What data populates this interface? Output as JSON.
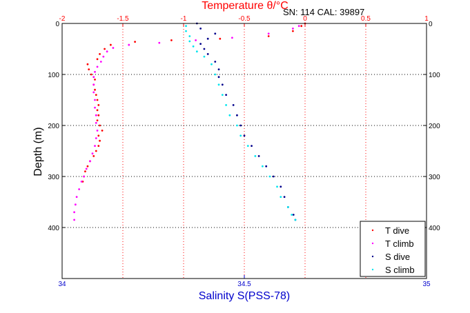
{
  "header": {
    "top_title": "Temperature θ/°C",
    "serial_text": "SN: 114  CAL: 39897"
  },
  "chart_data": {
    "type": "scatter",
    "ylabel": "Depth (m)",
    "ylim": [
      0,
      500
    ],
    "y_reversed": true,
    "y_ticks": [
      "0",
      "100",
      "200",
      "300",
      "400"
    ],
    "x_top": {
      "label": "Temperature θ/°C",
      "lim": [
        -2,
        1
      ],
      "ticks": [
        "-2",
        "-1.5",
        "-1",
        "-0.5",
        "0",
        "0.5",
        "1"
      ],
      "color": "#ff0000"
    },
    "x_bottom": {
      "label": "Salinity S(PSS-78)",
      "lim": [
        34,
        35
      ],
      "ticks": [
        "34",
        "34.5",
        "35"
      ],
      "color": "#0000cc"
    },
    "grid": true,
    "legend_position": "bottom-right",
    "series": [
      {
        "name": "T dive",
        "axis": "top",
        "color": "#ff0000",
        "points": [
          [
            0.0,
            0
          ],
          [
            -0.03,
            5
          ],
          [
            -0.1,
            15
          ],
          [
            -0.3,
            25
          ],
          [
            -0.7,
            30
          ],
          [
            -1.1,
            33
          ],
          [
            -1.4,
            36
          ],
          [
            -1.6,
            42
          ],
          [
            -1.65,
            50
          ],
          [
            -1.69,
            60
          ],
          [
            -1.71,
            70
          ],
          [
            -1.79,
            80
          ],
          [
            -1.78,
            90
          ],
          [
            -1.76,
            100
          ],
          [
            -1.73,
            110
          ],
          [
            -1.74,
            120
          ],
          [
            -1.73,
            130
          ],
          [
            -1.72,
            140
          ],
          [
            -1.71,
            150
          ],
          [
            -1.7,
            160
          ],
          [
            -1.71,
            170
          ],
          [
            -1.7,
            180
          ],
          [
            -1.71,
            190
          ],
          [
            -1.69,
            200
          ],
          [
            -1.67,
            210
          ],
          [
            -1.7,
            220
          ],
          [
            -1.69,
            230
          ],
          [
            -1.7,
            240
          ],
          [
            -1.72,
            250
          ],
          [
            -1.74,
            260
          ],
          [
            -1.77,
            270
          ],
          [
            -1.79,
            280
          ],
          [
            -1.81,
            290
          ],
          [
            -1.82,
            300
          ],
          [
            -1.83,
            310
          ]
        ]
      },
      {
        "name": "T climb",
        "axis": "top",
        "color": "#ff00ff",
        "points": [
          [
            -1.9,
            385
          ],
          [
            -1.9,
            370
          ],
          [
            -1.89,
            355
          ],
          [
            -1.88,
            340
          ],
          [
            -1.86,
            325
          ],
          [
            -1.84,
            310
          ],
          [
            -1.82,
            300
          ],
          [
            -1.8,
            285
          ],
          [
            -1.77,
            270
          ],
          [
            -1.75,
            255
          ],
          [
            -1.73,
            240
          ],
          [
            -1.72,
            225
          ],
          [
            -1.71,
            210
          ],
          [
            -1.72,
            195
          ],
          [
            -1.72,
            180
          ],
          [
            -1.73,
            165
          ],
          [
            -1.73,
            150
          ],
          [
            -1.74,
            135
          ],
          [
            -1.74,
            120
          ],
          [
            -1.74,
            105
          ],
          [
            -1.73,
            95
          ],
          [
            -1.71,
            85
          ],
          [
            -1.68,
            75
          ],
          [
            -1.66,
            65
          ],
          [
            -1.63,
            55
          ],
          [
            -1.58,
            48
          ],
          [
            -1.45,
            42
          ],
          [
            -1.2,
            38
          ],
          [
            -0.9,
            33
          ],
          [
            -0.6,
            28
          ],
          [
            -0.3,
            20
          ],
          [
            -0.1,
            10
          ],
          [
            -0.05,
            5
          ]
        ]
      },
      {
        "name": "S dive",
        "axis": "bottom",
        "color": "#00008b",
        "points": [
          [
            34.37,
            0
          ],
          [
            34.38,
            10
          ],
          [
            34.42,
            20
          ],
          [
            34.4,
            30
          ],
          [
            34.38,
            40
          ],
          [
            34.39,
            50
          ],
          [
            34.4,
            60
          ],
          [
            34.42,
            75
          ],
          [
            34.43,
            90
          ],
          [
            34.43,
            105
          ],
          [
            34.44,
            120
          ],
          [
            34.45,
            140
          ],
          [
            34.47,
            160
          ],
          [
            34.48,
            180
          ],
          [
            34.49,
            200
          ],
          [
            34.5,
            220
          ],
          [
            34.52,
            240
          ],
          [
            34.54,
            260
          ],
          [
            34.56,
            280
          ],
          [
            34.58,
            300
          ],
          [
            34.6,
            320
          ],
          [
            34.61,
            340
          ],
          [
            34.62,
            360
          ],
          [
            34.635,
            375
          ],
          [
            34.64,
            385
          ]
        ]
      },
      {
        "name": "S climb",
        "axis": "bottom",
        "color": "#00e5ee",
        "points": [
          [
            34.64,
            385
          ],
          [
            34.63,
            375
          ],
          [
            34.62,
            360
          ],
          [
            34.6,
            340
          ],
          [
            34.59,
            320
          ],
          [
            34.57,
            300
          ],
          [
            34.55,
            280
          ],
          [
            34.53,
            260
          ],
          [
            34.51,
            240
          ],
          [
            34.49,
            220
          ],
          [
            34.48,
            200
          ],
          [
            34.46,
            180
          ],
          [
            34.45,
            160
          ],
          [
            34.44,
            140
          ],
          [
            34.43,
            120
          ],
          [
            34.42,
            100
          ],
          [
            34.41,
            80
          ],
          [
            34.39,
            65
          ],
          [
            34.37,
            55
          ],
          [
            34.36,
            45
          ],
          [
            34.35,
            35
          ],
          [
            34.35,
            25
          ],
          [
            34.34,
            15
          ],
          [
            34.34,
            5
          ]
        ]
      }
    ]
  }
}
